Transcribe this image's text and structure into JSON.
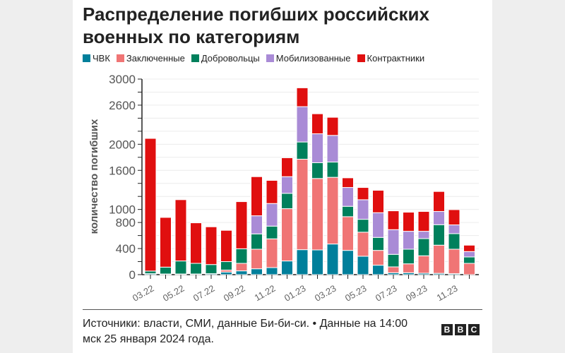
{
  "chart_data": {
    "type": "bar",
    "stacked": true,
    "title": "Распределение погибших российских военных по категориям",
    "ylabel": "количество погибших",
    "xlabel": "",
    "ylim": [
      0,
      3000
    ],
    "yticks": [
      0,
      400,
      800,
      1000,
      1600,
      2000,
      2600,
      3000
    ],
    "grid": true,
    "legend_position": "top",
    "categories": [
      "03.22",
      "04.22",
      "05.22",
      "06.22",
      "07.22",
      "08.22",
      "09.22",
      "10.22",
      "11.22",
      "12.22",
      "01.23",
      "02.23",
      "03.23",
      "04.23",
      "05.23",
      "06.23",
      "07.23",
      "08.23",
      "09.23",
      "10.23",
      "11.23",
      "12.23"
    ],
    "xtick_labels": [
      "03.22",
      "",
      "05.22",
      "",
      "07.22",
      "",
      "09.22",
      "",
      "11.22",
      "",
      "01.23",
      "",
      "03.23",
      "",
      "05.23",
      "",
      "07.23",
      "",
      "09.23",
      "",
      "11.23",
      ""
    ],
    "series": [
      {
        "name": "ЧВК",
        "color": "#007f9b",
        "values": [
          15,
          10,
          10,
          10,
          15,
          40,
          58,
          90,
          108,
          210,
          383,
          379,
          470,
          372,
          282,
          145,
          29,
          29,
          22,
          20,
          15,
          0
        ]
      },
      {
        "name": "Заключенные",
        "color": "#f07575",
        "values": [
          0,
          0,
          0,
          0,
          0,
          30,
          115,
          300,
          441,
          802,
          1388,
          1096,
          1023,
          517,
          369,
          227,
          90,
          137,
          267,
          432,
          375,
          173
        ]
      },
      {
        "name": "Добровольцы",
        "color": "#00805c",
        "values": [
          40,
          105,
          200,
          163,
          140,
          130,
          224,
          235,
          195,
          235,
          264,
          242,
          234,
          159,
          198,
          199,
          192,
          224,
          264,
          314,
          239,
          98
        ]
      },
      {
        "name": "Мобилизованные",
        "color": "#a98bd6",
        "values": [
          0,
          0,
          0,
          0,
          0,
          0,
          0,
          278,
          347,
          256,
          542,
          444,
          409,
          289,
          300,
          379,
          379,
          275,
          112,
          203,
          134,
          83
        ]
      },
      {
        "name": "Контрактники",
        "color": "#e00f0f",
        "values": [
          2035,
          763,
          940,
          622,
          579,
          480,
          723,
          600,
          355,
          290,
          289,
          307,
          278,
          148,
          188,
          344,
          289,
          293,
          304,
          307,
          234,
          98
        ]
      }
    ]
  },
  "footer": {
    "source": "Источники: власти, СМИ, данные Би-би-си. • Данные на 14:00 мск 25 января 2024 года.",
    "logo": "BBC"
  }
}
